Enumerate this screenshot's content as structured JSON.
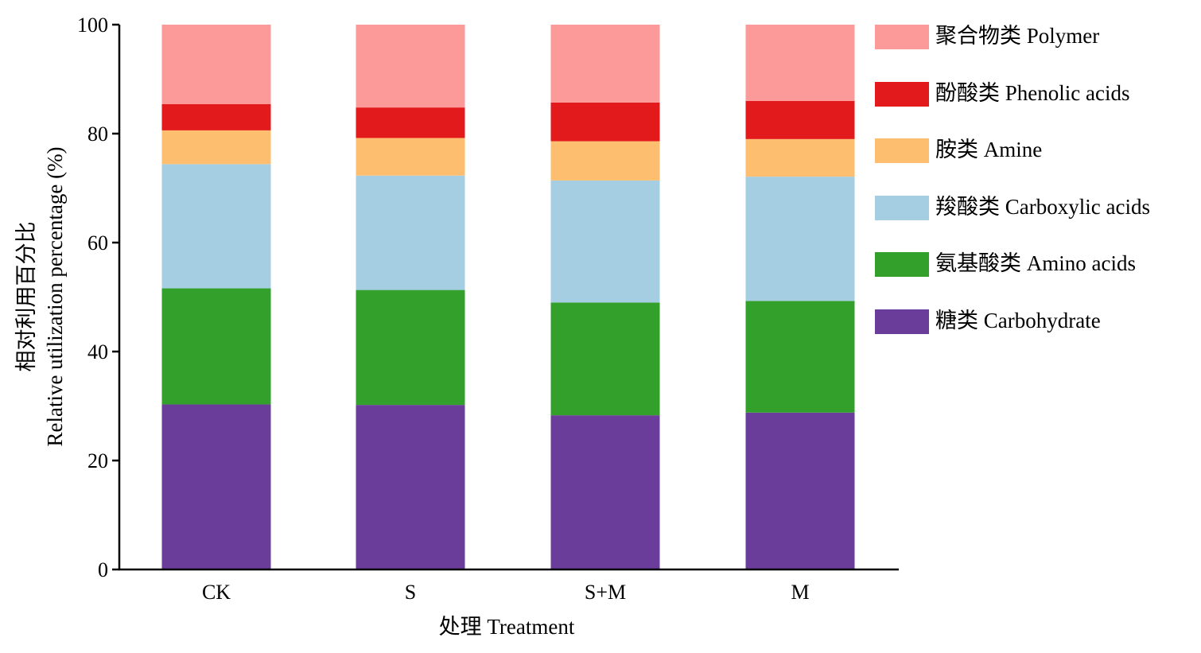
{
  "chart_data": {
    "type": "bar",
    "stacked": true,
    "categories": [
      "CK",
      "S",
      "S+M",
      "M"
    ],
    "xlabel": "处理 Treatment",
    "ylabel_lines": [
      "相对利用百分比",
      "Relative utilization percentage (%)"
    ],
    "ylim": [
      0,
      100
    ],
    "yticks": [
      0,
      20,
      40,
      60,
      80,
      100
    ],
    "grid": false,
    "legend_position": "right",
    "series": [
      {
        "name": "糖类 Carbohydrate",
        "color": "#6a3d9a",
        "values": [
          30.3,
          30.2,
          28.3,
          28.8
        ]
      },
      {
        "name": "氨基酸类 Amino acids",
        "color": "#33a02c",
        "values": [
          21.3,
          21.1,
          20.7,
          20.5
        ]
      },
      {
        "name": "羧酸类 Carboxylic acids",
        "color": "#a6cee3",
        "values": [
          22.8,
          21.0,
          22.4,
          22.8
        ]
      },
      {
        "name": "胺类 Amine",
        "color": "#fdbf6f",
        "values": [
          6.2,
          6.9,
          7.2,
          6.9
        ]
      },
      {
        "name": "酚酸类 Phenolic acids",
        "color": "#e31a1c",
        "values": [
          4.8,
          5.6,
          7.1,
          7.0
        ]
      },
      {
        "name": "聚合物类 Polymer",
        "color": "#fb9a99",
        "values": [
          14.6,
          15.2,
          14.3,
          14.0
        ]
      }
    ]
  }
}
